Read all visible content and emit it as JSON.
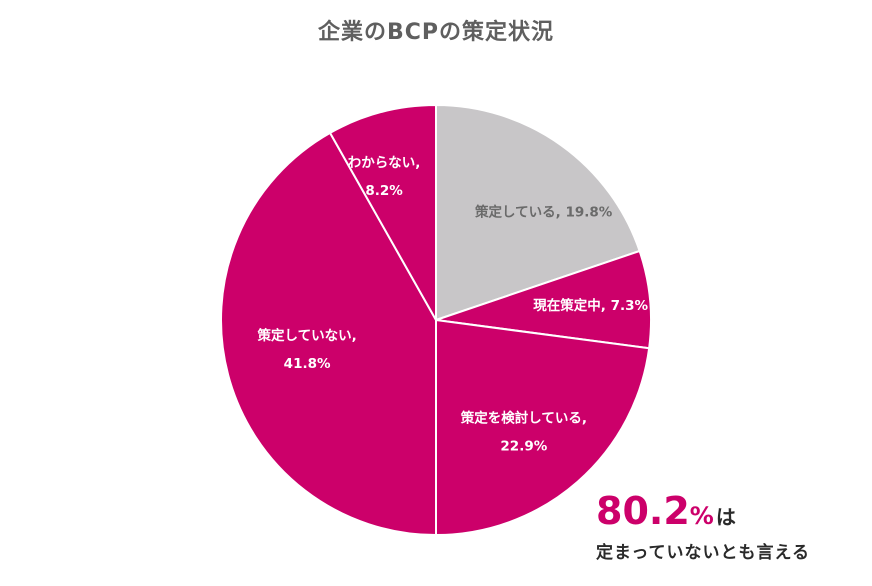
{
  "title": "企業のBCPの策定状況",
  "chart_data": {
    "type": "pie",
    "slices": [
      {
        "label": "策定している",
        "value": 19.8,
        "value_text": "19.8%",
        "color": "#c8c6c8",
        "text_color": "#6a6a6a"
      },
      {
        "label": "現在策定中",
        "value": 7.3,
        "value_text": "7.3%",
        "color": "#cc006a",
        "text_color": "#ffffff"
      },
      {
        "label": "策定を検討している",
        "value": 22.9,
        "value_text": "22.9%",
        "color": "#cc006a",
        "text_color": "#ffffff"
      },
      {
        "label": "策定していない",
        "value": 41.8,
        "value_text": "41.8%",
        "color": "#cc006a",
        "text_color": "#ffffff"
      },
      {
        "label": "わからない",
        "value": 8.2,
        "value_text": "8.2%",
        "color": "#cc006a",
        "text_color": "#ffffff"
      }
    ],
    "start": "12 o'clock",
    "direction": "clockwise",
    "separator_color": "#ffffff"
  },
  "callout": {
    "value": "80.2",
    "unit": "%",
    "particle": "は",
    "text": "定まっていないとも言える",
    "accent_color": "#cc006a"
  }
}
